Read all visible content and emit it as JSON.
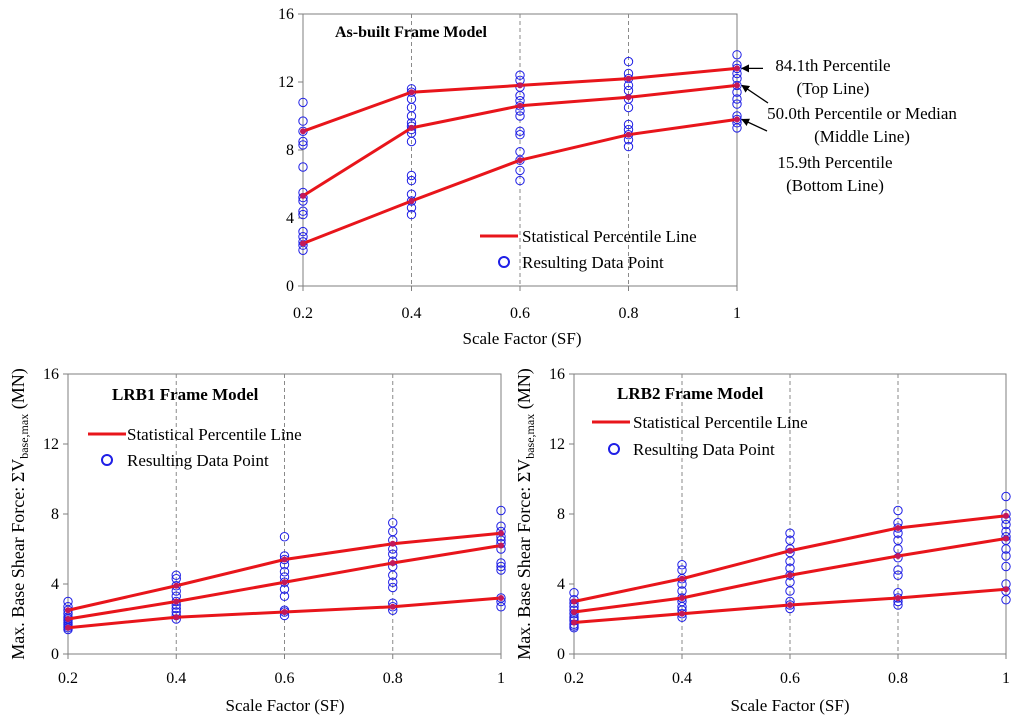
{
  "figure": {
    "y_axis_label_main": "Max. Base Shear Force: ΣV",
    "y_axis_label_sub": "base,max",
    "y_axis_label_unit": " (MN)"
  },
  "chart_data": [
    {
      "type": "line",
      "title": "As-built Frame Model",
      "xlabel": "Scale Factor (SF)",
      "ylabel": "",
      "x": [
        0.2,
        0.4,
        0.6,
        0.8,
        1
      ],
      "xticks": [
        "0.2",
        "0.4",
        "0.6",
        "0.8",
        "1"
      ],
      "yticks": [
        "0",
        "4",
        "8",
        "12",
        "16"
      ],
      "xlim": [
        0.2,
        1
      ],
      "ylim": [
        0,
        16
      ],
      "grid": "vertical dashed",
      "legend": {
        "position": "bottom-right",
        "line_label": "Statistical Percentile Line",
        "marker_label": "Resulting Data Point"
      },
      "series": [
        {
          "name": "84.1th Percentile",
          "values": [
            9.1,
            11.4,
            11.8,
            12.2,
            12.8
          ]
        },
        {
          "name": "50.0th Percentile or Median",
          "values": [
            5.3,
            9.3,
            10.6,
            11.1,
            11.8
          ]
        },
        {
          "name": "15.9th Percentile",
          "values": [
            2.5,
            5.0,
            7.4,
            8.9,
            9.8
          ]
        }
      ],
      "scatter": [
        [
          10.8,
          9.7,
          9.1,
          8.5,
          8.3,
          7.0,
          5.5,
          5.2,
          5.0,
          4.4,
          4.2,
          3.2,
          2.9,
          2.6,
          2.4,
          2.1
        ],
        [
          11.6,
          11.4,
          11.0,
          10.5,
          10.0,
          9.6,
          9.4,
          9.2,
          9.0,
          8.5,
          6.5,
          6.2,
          5.4,
          5.0,
          4.6,
          4.2
        ],
        [
          12.4,
          12.1,
          11.7,
          11.2,
          10.9,
          10.6,
          10.3,
          10.0,
          9.1,
          8.9,
          7.9,
          7.4,
          6.8,
          6.2
        ],
        [
          13.2,
          12.5,
          12.2,
          11.8,
          11.5,
          11.0,
          10.5,
          9.5,
          9.2,
          8.9,
          8.6,
          8.2
        ],
        [
          13.6,
          13.0,
          12.8,
          12.5,
          12.2,
          11.8,
          11.4,
          11.0,
          10.7,
          10.0,
          9.8,
          9.6,
          9.3
        ]
      ],
      "annotations": [
        {
          "line1": "84.1th Percentile",
          "line2": "(Top Line)",
          "target": "top"
        },
        {
          "line1": "50.0th Percentile or Median",
          "line2": "(Middle Line)",
          "target": "middle"
        },
        {
          "line1": "15.9th Percentile",
          "line2": "(Bottom Line)",
          "target": "bottom"
        }
      ]
    },
    {
      "type": "line",
      "title": "LRB1 Frame Model",
      "xlabel": "Scale Factor (SF)",
      "ylabel": "Max. Base Shear Force: ΣVbase,max (MN)",
      "x": [
        0.2,
        0.4,
        0.6,
        0.8,
        1
      ],
      "xticks": [
        "0.2",
        "0.4",
        "0.6",
        "0.8",
        "1"
      ],
      "yticks": [
        "0",
        "4",
        "8",
        "12",
        "16"
      ],
      "xlim": [
        0.2,
        1
      ],
      "ylim": [
        0,
        16
      ],
      "grid": "vertical dashed",
      "legend": {
        "position": "top-left",
        "line_label": "Statistical Percentile Line",
        "marker_label": "Resulting Data Point"
      },
      "series": [
        {
          "name": "84.1th Percentile",
          "values": [
            2.5,
            3.9,
            5.4,
            6.3,
            6.9
          ]
        },
        {
          "name": "50.0th Percentile or Median",
          "values": [
            2.0,
            3.0,
            4.1,
            5.2,
            6.2
          ]
        },
        {
          "name": "15.9th Percentile",
          "values": [
            1.5,
            2.1,
            2.4,
            2.7,
            3.2
          ]
        }
      ],
      "scatter": [
        [
          3.0,
          2.7,
          2.5,
          2.3,
          2.1,
          2.0,
          1.9,
          1.8,
          1.7,
          1.6,
          1.5,
          1.4
        ],
        [
          4.5,
          4.3,
          3.9,
          3.6,
          3.3,
          3.0,
          2.8,
          2.6,
          2.4,
          2.2,
          2.0
        ],
        [
          6.7,
          5.6,
          5.4,
          5.1,
          4.7,
          4.4,
          4.1,
          3.7,
          3.3,
          2.5,
          2.4,
          2.2
        ],
        [
          7.5,
          7.0,
          6.5,
          6.0,
          5.7,
          5.3,
          5.0,
          4.5,
          4.1,
          3.8,
          2.9,
          2.7,
          2.5
        ],
        [
          8.2,
          7.3,
          7.0,
          6.7,
          6.5,
          6.3,
          6.0,
          5.2,
          5.0,
          4.8,
          3.2,
          3.0,
          2.7
        ]
      ]
    },
    {
      "type": "line",
      "title": "LRB2 Frame Model",
      "xlabel": "Scale Factor (SF)",
      "ylabel": "Max. Base Shear Force: ΣVbase,max (MN)",
      "x": [
        0.2,
        0.4,
        0.6,
        0.8,
        1
      ],
      "xticks": [
        "0.2",
        "0.4",
        "0.6",
        "0.8",
        "1"
      ],
      "yticks": [
        "0",
        "4",
        "8",
        "12",
        "16"
      ],
      "xlim": [
        0.2,
        1
      ],
      "ylim": [
        0,
        16
      ],
      "grid": "vertical dashed",
      "legend": {
        "position": "top-left",
        "line_label": "Statistical Percentile Line",
        "marker_label": "Resulting Data Point"
      },
      "series": [
        {
          "name": "84.1th Percentile",
          "values": [
            3.0,
            4.3,
            5.9,
            7.2,
            7.9
          ]
        },
        {
          "name": "50.0th Percentile or Median",
          "values": [
            2.4,
            3.2,
            4.5,
            5.6,
            6.6
          ]
        },
        {
          "name": "15.9th Percentile",
          "values": [
            1.8,
            2.3,
            2.8,
            3.2,
            3.7
          ]
        }
      ],
      "scatter": [
        [
          3.5,
          3.1,
          2.9,
          2.7,
          2.5,
          2.3,
          2.1,
          2.0,
          1.9,
          1.7,
          1.6,
          1.5
        ],
        [
          5.1,
          4.8,
          4.3,
          4.0,
          3.6,
          3.2,
          3.0,
          2.7,
          2.5,
          2.3,
          2.1
        ],
        [
          6.9,
          6.5,
          6.0,
          5.8,
          5.3,
          4.9,
          4.5,
          4.1,
          3.6,
          3.0,
          2.8,
          2.6
        ],
        [
          8.2,
          7.5,
          7.2,
          6.9,
          6.5,
          6.0,
          5.5,
          4.8,
          4.5,
          3.5,
          3.2,
          3.0,
          2.8
        ],
        [
          9.0,
          8.0,
          7.7,
          7.4,
          7.0,
          6.7,
          6.5,
          6.0,
          5.6,
          5.0,
          4.0,
          3.6,
          3.1
        ]
      ]
    }
  ]
}
